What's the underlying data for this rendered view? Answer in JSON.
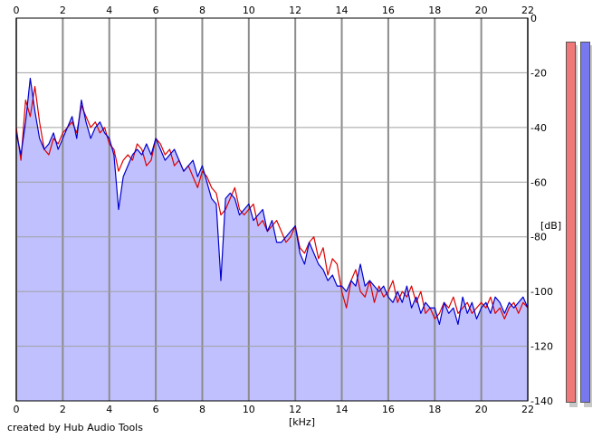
{
  "chart_data": {
    "type": "area",
    "xlabel": "[kHz]",
    "ylabel": "[dB]",
    "xlim": [
      0,
      22
    ],
    "ylim": [
      -140,
      0
    ],
    "x_ticks": [
      "0",
      "2",
      "4",
      "6",
      "8",
      "10",
      "12",
      "14",
      "16",
      "18",
      "20",
      "22"
    ],
    "y_ticks": [
      "0",
      "-20",
      "-40",
      "-60",
      "-80",
      "-100",
      "-120",
      "-140"
    ],
    "grid": true,
    "series": [
      {
        "color": "#dd0000",
        "x": [
          0,
          0.2,
          0.4,
          0.6,
          0.8,
          1.0,
          1.2,
          1.4,
          1.6,
          1.8,
          2.0,
          2.2,
          2.4,
          2.6,
          2.8,
          3.0,
          3.2,
          3.4,
          3.6,
          3.8,
          4.0,
          4.2,
          4.4,
          4.6,
          4.8,
          5.0,
          5.2,
          5.4,
          5.6,
          5.8,
          6.0,
          6.2,
          6.4,
          6.6,
          6.8,
          7.0,
          7.2,
          7.4,
          7.6,
          7.8,
          8.0,
          8.2,
          8.4,
          8.6,
          8.8,
          9.0,
          9.2,
          9.4,
          9.6,
          9.8,
          10.0,
          10.2,
          10.4,
          10.6,
          10.8,
          11.0,
          11.2,
          11.4,
          11.6,
          11.8,
          12.0,
          12.2,
          12.4,
          12.6,
          12.8,
          13.0,
          13.2,
          13.4,
          13.6,
          13.8,
          14.0,
          14.2,
          14.4,
          14.6,
          14.8,
          15.0,
          15.2,
          15.4,
          15.6,
          15.8,
          16.0,
          16.2,
          16.4,
          16.6,
          16.8,
          17.0,
          17.2,
          17.4,
          17.6,
          17.8,
          18.0,
          18.2,
          18.4,
          18.6,
          18.8,
          19.0,
          19.2,
          19.4,
          19.6,
          19.8,
          20.0,
          20.2,
          20.4,
          20.6,
          20.8,
          21.0,
          21.2,
          21.4,
          21.6,
          21.8,
          22.0
        ],
        "values": [
          -40,
          -52,
          -30,
          -36,
          -25,
          -38,
          -48,
          -50,
          -44,
          -46,
          -42,
          -40,
          -38,
          -42,
          -32,
          -36,
          -40,
          -38,
          -42,
          -40,
          -46,
          -48,
          -56,
          -52,
          -50,
          -52,
          -46,
          -48,
          -54,
          -52,
          -44,
          -46,
          -50,
          -48,
          -54,
          -52,
          -56,
          -54,
          -58,
          -62,
          -56,
          -58,
          -62,
          -64,
          -72,
          -70,
          -66,
          -62,
          -70,
          -72,
          -70,
          -68,
          -76,
          -74,
          -78,
          -76,
          -74,
          -78,
          -82,
          -80,
          -76,
          -84,
          -86,
          -82,
          -80,
          -88,
          -84,
          -94,
          -88,
          -90,
          -100,
          -106,
          -96,
          -92,
          -100,
          -102,
          -96,
          -104,
          -98,
          -102,
          -100,
          -96,
          -104,
          -100,
          -102,
          -98,
          -104,
          -100,
          -108,
          -106,
          -110,
          -108,
          -104,
          -106,
          -102,
          -108,
          -106,
          -104,
          -108,
          -106,
          -104,
          -106,
          -102,
          -108,
          -106,
          -110,
          -106,
          -104,
          -108,
          -104,
          -106
        ]
      },
      {
        "color": "#0000cc",
        "x": [
          0,
          0.2,
          0.4,
          0.6,
          0.8,
          1.0,
          1.2,
          1.4,
          1.6,
          1.8,
          2.0,
          2.2,
          2.4,
          2.6,
          2.8,
          3.0,
          3.2,
          3.4,
          3.6,
          3.8,
          4.0,
          4.2,
          4.4,
          4.6,
          4.8,
          5.0,
          5.2,
          5.4,
          5.6,
          5.8,
          6.0,
          6.2,
          6.4,
          6.6,
          6.8,
          7.0,
          7.2,
          7.4,
          7.6,
          7.8,
          8.0,
          8.2,
          8.4,
          8.6,
          8.8,
          9.0,
          9.2,
          9.4,
          9.6,
          9.8,
          10.0,
          10.2,
          10.4,
          10.6,
          10.8,
          11.0,
          11.2,
          11.4,
          11.6,
          11.8,
          12.0,
          12.2,
          12.4,
          12.6,
          12.8,
          13.0,
          13.2,
          13.4,
          13.6,
          13.8,
          14.0,
          14.2,
          14.4,
          14.6,
          14.8,
          15.0,
          15.2,
          15.4,
          15.6,
          15.8,
          16.0,
          16.2,
          16.4,
          16.6,
          16.8,
          17.0,
          17.2,
          17.4,
          17.6,
          17.8,
          18.0,
          18.2,
          18.4,
          18.6,
          18.8,
          19.0,
          19.2,
          19.4,
          19.6,
          19.8,
          20.0,
          20.2,
          20.4,
          20.6,
          20.8,
          21.0,
          21.2,
          21.4,
          21.6,
          21.8,
          22.0
        ],
        "values": [
          -42,
          -50,
          -38,
          -22,
          -34,
          -44,
          -48,
          -46,
          -42,
          -48,
          -44,
          -40,
          -36,
          -44,
          -30,
          -38,
          -44,
          -40,
          -38,
          -42,
          -44,
          -50,
          -70,
          -58,
          -54,
          -50,
          -48,
          -50,
          -46,
          -50,
          -44,
          -48,
          -52,
          -50,
          -48,
          -52,
          -56,
          -54,
          -52,
          -58,
          -54,
          -60,
          -66,
          -68,
          -96,
          -66,
          -64,
          -66,
          -72,
          -70,
          -68,
          -74,
          -72,
          -70,
          -78,
          -74,
          -82,
          -82,
          -80,
          -78,
          -76,
          -86,
          -90,
          -82,
          -86,
          -90,
          -92,
          -96,
          -94,
          -98,
          -98,
          -100,
          -96,
          -98,
          -90,
          -98,
          -96,
          -98,
          -100,
          -98,
          -102,
          -104,
          -100,
          -104,
          -98,
          -106,
          -102,
          -108,
          -104,
          -106,
          -106,
          -112,
          -104,
          -108,
          -106,
          -112,
          -102,
          -108,
          -104,
          -110,
          -106,
          -104,
          -108,
          -102,
          -104,
          -108,
          -104,
          -106,
          -104,
          -102,
          -106
        ]
      }
    ]
  },
  "meters": {
    "left_color": "#f07878",
    "right_color": "#7878f0"
  },
  "credit": "created by Hub Audio Tools"
}
